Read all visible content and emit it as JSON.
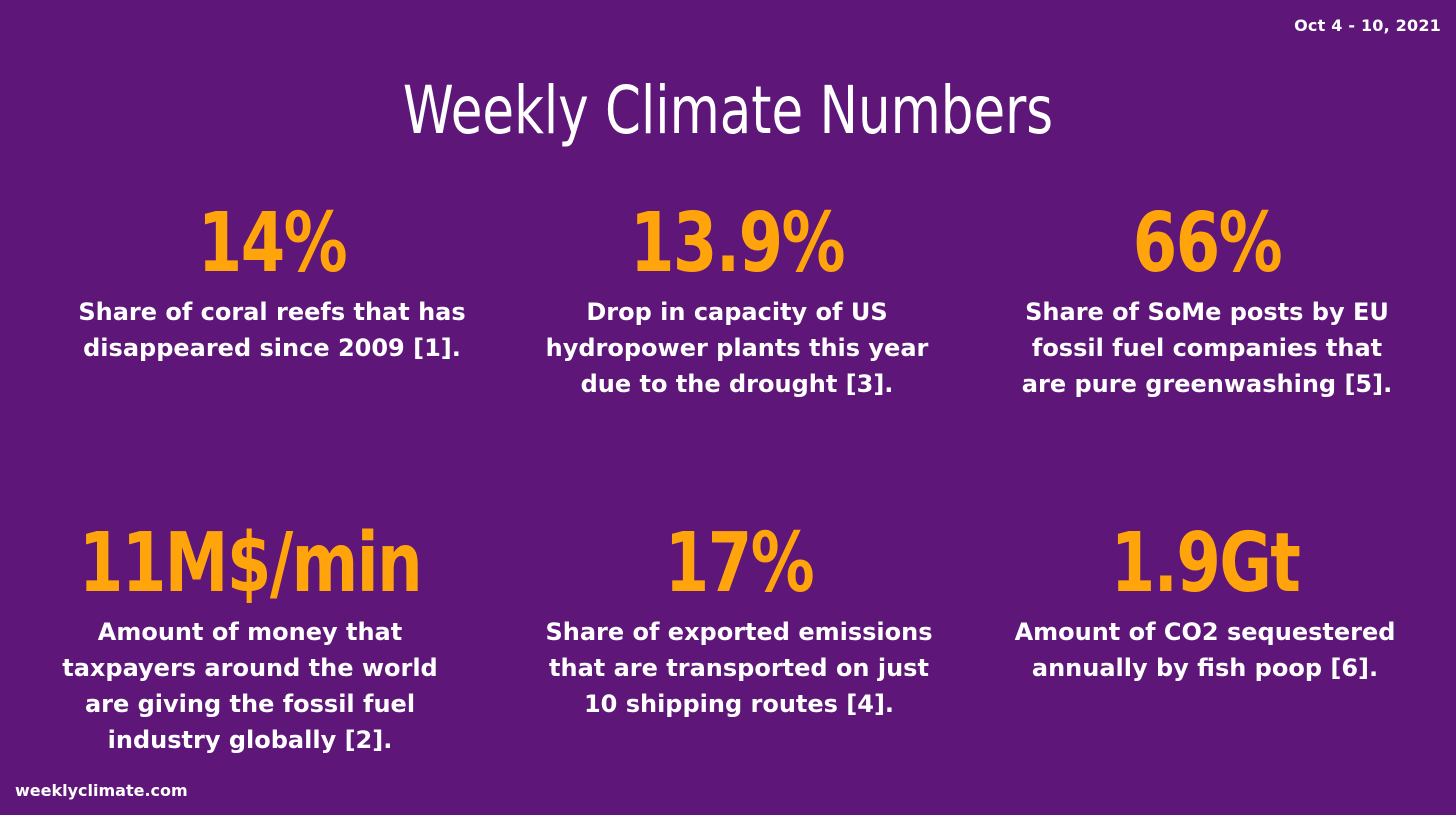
{
  "date_range": "Oct 4 - 10, 2021",
  "title": "Weekly Climate Numbers",
  "colors": {
    "background": "#5e1779",
    "accent": "#ffa50b",
    "text": "#ffffff"
  },
  "stats": [
    {
      "number": "14%",
      "lines": [
        "Share of coral reefs that has",
        "disappeared since 2009 [1]."
      ]
    },
    {
      "number": "13.9%",
      "lines": [
        "Drop in capacity of US",
        "hydropower plants this year",
        "due to the drought [3]."
      ]
    },
    {
      "number": "66%",
      "lines": [
        "Share of SoMe posts by EU",
        "fossil fuel companies that",
        "are pure greenwashing [5]."
      ]
    },
    {
      "number": "11M$/min",
      "lines": [
        "Amount of money that",
        "taxpayers around the world",
        "are giving the fossil fuel",
        "industry globally [2]."
      ]
    },
    {
      "number": "17%",
      "lines": [
        "Share of exported emissions",
        "that are transported on just",
        "10 shipping routes [4]."
      ]
    },
    {
      "number": "1.9Gt",
      "lines": [
        "Amount of CO2 sequestered",
        "annually by fish poop [6]."
      ]
    }
  ],
  "website": "weeklyclimate.com"
}
